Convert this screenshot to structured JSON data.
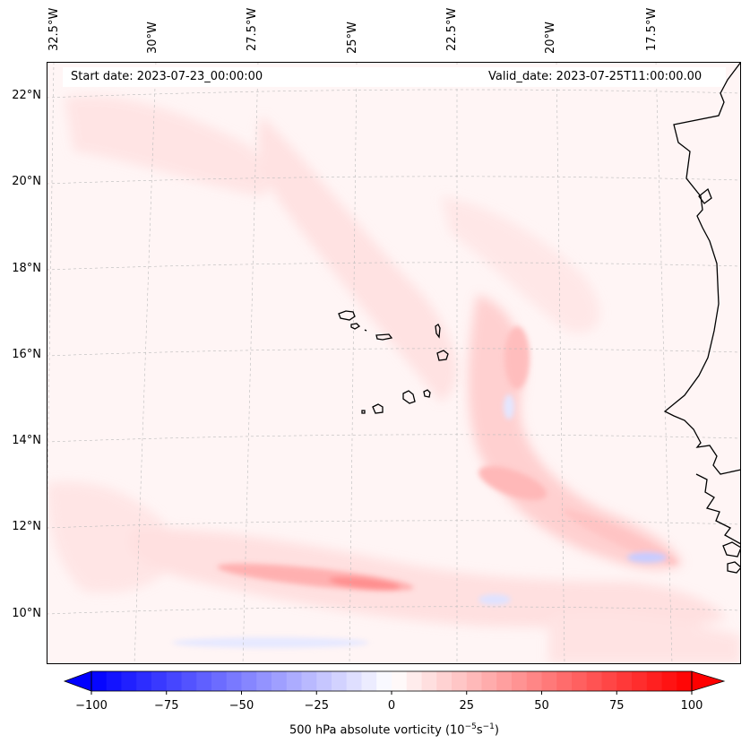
{
  "map": {
    "start_date": "Start date: 2023-07-23_00:00:00",
    "valid_date": "Valid_date: 2023-07-25T11:00:00.00",
    "lon_labels": [
      "32.5°W",
      "30°W",
      "27.5°W",
      "25°W",
      "22.5°W",
      "20°W",
      "17.5°W"
    ],
    "lat_labels": [
      "22°N",
      "20°N",
      "18°N",
      "16°N",
      "14°N",
      "12°N",
      "10°N"
    ],
    "field": "500 hPa absolute vorticity"
  },
  "colorbar": {
    "ticks": [
      "−100",
      "−75",
      "−50",
      "−25",
      "0",
      "25",
      "50",
      "75",
      "100"
    ],
    "min": -100,
    "max": 100,
    "step": 5,
    "label": "500 hPa absolute vorticity (10",
    "label_exp1": "−5",
    "label_mid": "s",
    "label_exp2": "−1",
    "label_end": ")",
    "neg_color": "#0000ff",
    "pos_color": "#ff0000"
  }
}
